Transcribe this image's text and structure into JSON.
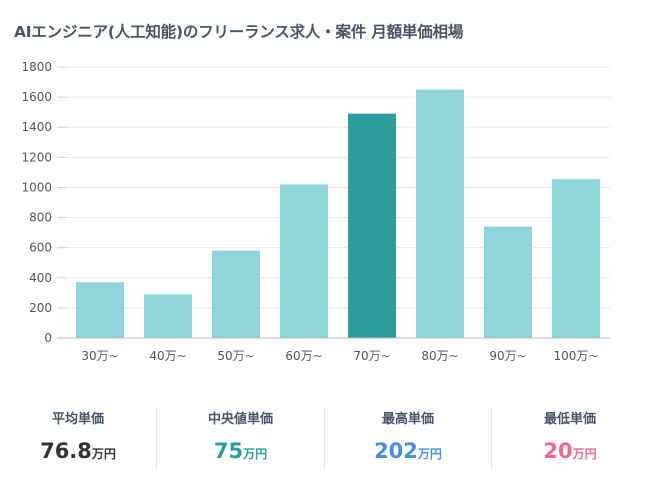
{
  "page_title": "AIエンジニア(人工知能)のフリーランス求人・案件 月額単価相場",
  "colors": {
    "bar": "#8fd4d8",
    "bar_highlight": "#2e9c9c",
    "grid": "#e8e8e8",
    "axis_text": "#555555",
    "stat_average": "#333333",
    "stat_median": "#2e9c9c",
    "stat_max": "#4a8fdd",
    "stat_min": "#f06a8e"
  },
  "chart_data": {
    "type": "bar",
    "title": "",
    "xlabel": "",
    "ylabel": "",
    "categories": [
      "30万~",
      "40万~",
      "50万~",
      "60万~",
      "70万~",
      "80万~",
      "90万~",
      "100万~"
    ],
    "values": [
      370,
      290,
      580,
      1020,
      1490,
      1650,
      740,
      1055
    ],
    "highlight_category": "70万~",
    "ylim": [
      0,
      1800
    ],
    "yticks": [
      "0",
      "200",
      "400",
      "600",
      "800",
      "1000",
      "1200",
      "1400",
      "1600",
      "1800"
    ],
    "grid": true,
    "legend": "none"
  },
  "stats": [
    {
      "label": "平均単価",
      "value": "76.8",
      "unit": "万円"
    },
    {
      "label": "中央値単価",
      "value": "75",
      "unit": "万円"
    },
    {
      "label": "最高単価",
      "value": "202",
      "unit": "万円"
    },
    {
      "label": "最低単価",
      "value": "20",
      "unit": "万円"
    }
  ]
}
